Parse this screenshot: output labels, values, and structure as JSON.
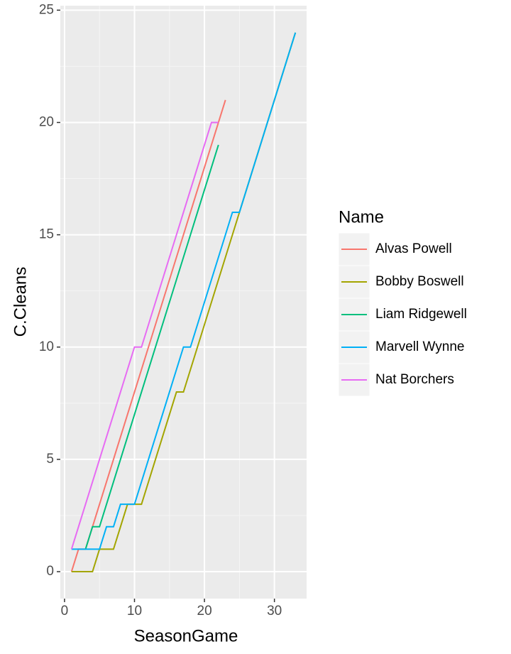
{
  "chart_data": {
    "type": "line",
    "xlabel": "SeasonGame",
    "ylabel": "C.Cleans",
    "legend_title": "Name",
    "legend": "right",
    "grid": true,
    "xlim": [
      -0.6,
      34.6
    ],
    "xticks": [
      0,
      10,
      20,
      30
    ],
    "ylim": [
      -1.2,
      25.2
    ],
    "yticks": [
      0,
      5,
      10,
      15,
      20,
      25
    ],
    "series": [
      {
        "name": "Alvas Powell",
        "color": "#F8766D",
        "x": [
          1,
          2,
          3,
          4,
          5,
          6,
          7,
          8,
          9,
          10,
          11,
          12,
          13,
          14,
          15,
          16,
          17,
          18,
          19,
          20,
          21,
          22,
          23
        ],
        "values": [
          0,
          1,
          1,
          2,
          3,
          4,
          5,
          6,
          7,
          8,
          9,
          10,
          11,
          12,
          13,
          14,
          15,
          16,
          17,
          18,
          19,
          20,
          21
        ]
      },
      {
        "name": "Bobby Boswell",
        "color": "#A3A500",
        "x": [
          1,
          2,
          3,
          4,
          5,
          6,
          7,
          8,
          9,
          10,
          11,
          12,
          13,
          14,
          15,
          16,
          17,
          18,
          19,
          20,
          21,
          22,
          23,
          24,
          25,
          26,
          27,
          28,
          29,
          30,
          31,
          32,
          33
        ],
        "values": [
          0,
          0,
          0,
          0,
          1,
          1,
          1,
          2,
          3,
          3,
          3,
          4,
          5,
          6,
          7,
          8,
          8,
          9,
          10,
          11,
          12,
          13,
          14,
          15,
          16,
          17,
          18,
          19,
          20,
          21,
          22,
          23,
          24
        ]
      },
      {
        "name": "Liam Ridgewell",
        "color": "#00BF7D",
        "x": [
          3,
          4,
          5,
          6,
          7,
          8,
          9,
          10,
          11,
          12,
          13,
          14,
          15,
          16,
          17,
          18,
          19,
          20,
          21,
          22
        ],
        "values": [
          1,
          2,
          2,
          3,
          4,
          5,
          6,
          7,
          8,
          9,
          10,
          11,
          12,
          13,
          14,
          15,
          16,
          17,
          18,
          19
        ]
      },
      {
        "name": "Marvell Wynne",
        "color": "#00B0F6",
        "x": [
          1,
          2,
          3,
          4,
          5,
          6,
          7,
          8,
          9,
          10,
          11,
          12,
          13,
          14,
          15,
          16,
          17,
          18,
          19,
          20,
          21,
          22,
          23,
          24,
          25,
          26,
          27,
          28,
          29,
          30,
          31,
          32,
          33
        ],
        "values": [
          1,
          1,
          1,
          1,
          1,
          2,
          2,
          3,
          3,
          3,
          4,
          5,
          6,
          7,
          8,
          9,
          10,
          10,
          11,
          12,
          13,
          14,
          15,
          16,
          16,
          17,
          18,
          19,
          20,
          21,
          22,
          23,
          24
        ]
      },
      {
        "name": "Nat Borchers",
        "color": "#E76BF3",
        "x": [
          1,
          2,
          3,
          4,
          5,
          6,
          7,
          8,
          9,
          10,
          11,
          12,
          13,
          14,
          15,
          16,
          17,
          18,
          19,
          20,
          21,
          22
        ],
        "values": [
          1,
          2,
          3,
          4,
          5,
          6,
          7,
          8,
          9,
          10,
          10,
          11,
          12,
          13,
          14,
          15,
          16,
          17,
          18,
          19,
          20,
          20
        ]
      }
    ]
  }
}
